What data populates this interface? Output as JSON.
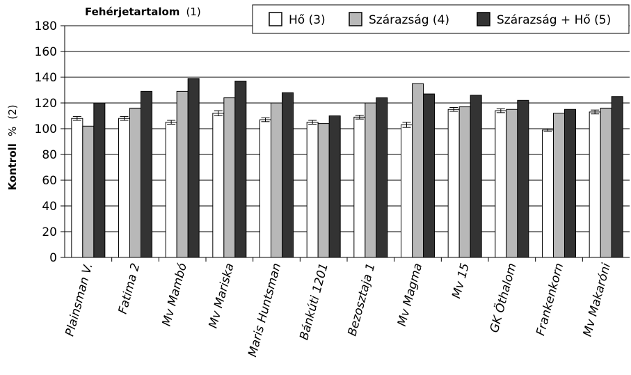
{
  "chart_data": {
    "type": "bar",
    "title": "Fehérjetartalom",
    "title_ref": "(1)",
    "ylabel": "Kontroll",
    "ylabel_unit": "%",
    "ylabel_ref": "(2)",
    "xlabel": "",
    "ylim": [
      0,
      180
    ],
    "yticks": [
      0,
      20,
      40,
      60,
      80,
      100,
      120,
      140,
      160,
      180
    ],
    "grid": true,
    "legend_position": "top-right",
    "categories": [
      "Plainsman V.",
      "Fatima 2",
      "Mv Mambó",
      "Mv Mariska",
      "Maris Huntsman",
      "Bánkúti 1201",
      "Bezosztaja 1",
      "Mv Magma",
      "Mv 15",
      "GK Öthalom",
      "Frankenkorn",
      "Mv Makaróni"
    ],
    "series": [
      {
        "name": "Hő (3)",
        "color": "#ffffff",
        "values": [
          108,
          108,
          105,
          112,
          107,
          105,
          109,
          103,
          115,
          114,
          99,
          113
        ],
        "errors": [
          1.5,
          1.5,
          1.5,
          2,
          1.5,
          1.5,
          1.5,
          2,
          1.5,
          1.5,
          1,
          1.5
        ]
      },
      {
        "name": "Szárazság (4)",
        "color": "#b8b8b8",
        "values": [
          102,
          116,
          129,
          124,
          120,
          104,
          120,
          135,
          117,
          115,
          112,
          116
        ],
        "errors": []
      },
      {
        "name": "Szárazság + Hő (5)",
        "color": "#333333",
        "values": [
          120,
          129,
          139,
          137,
          128,
          110,
          124,
          127,
          126,
          122,
          115,
          125
        ],
        "errors": []
      }
    ]
  }
}
